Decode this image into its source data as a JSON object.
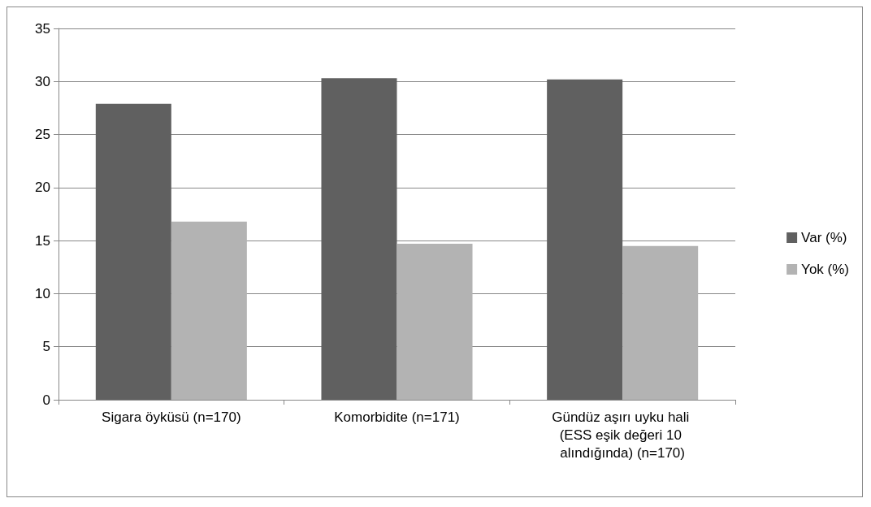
{
  "chart_data": {
    "type": "bar",
    "categories": [
      "Sigara öyküsü (n=170)",
      "Komorbidite (n=171)",
      "Gündüz aşırı uyku hali (ESS eşik değeri 10 alındığında) (n=170)"
    ],
    "series": [
      {
        "name": "Var (%)",
        "color": "#606060",
        "values": [
          27.9,
          30.3,
          30.2
        ]
      },
      {
        "name": "Yok (%)",
        "color": "#b3b3b3",
        "values": [
          16.8,
          14.7,
          14.5
        ]
      }
    ],
    "ylim": [
      0,
      35
    ],
    "yticks": [
      0,
      5,
      10,
      15,
      20,
      25,
      30,
      35
    ],
    "grid": "y",
    "legend": "right"
  }
}
